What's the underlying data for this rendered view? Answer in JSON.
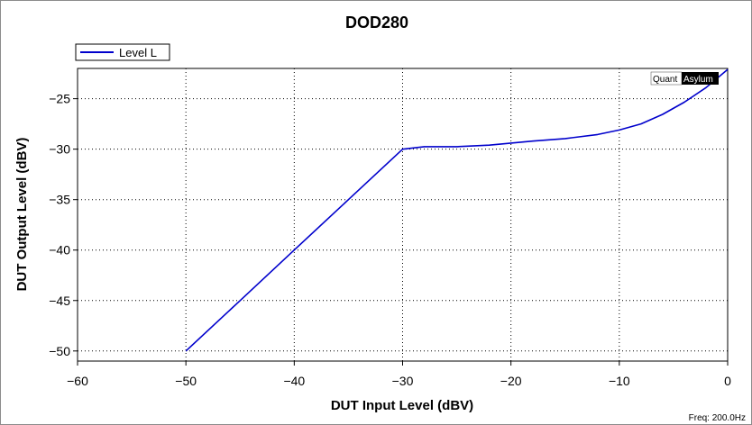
{
  "chart_data": {
    "type": "line",
    "title": "DOD280",
    "xlabel": "DUT Input Level (dBV)",
    "ylabel": "DUT Output Level (dBV)",
    "xlim": [
      -60,
      0
    ],
    "ylim": [
      -51,
      -22
    ],
    "xticks": [
      -60,
      -50,
      -40,
      -30,
      -20,
      -10,
      0
    ],
    "yticks": [
      -25,
      -30,
      -35,
      -40,
      -45,
      -50
    ],
    "grid": true,
    "legend_position": "top-left",
    "series": [
      {
        "name": "Level L",
        "color": "#0000cc",
        "x": [
          -50,
          -45,
          -40,
          -35,
          -30,
          -28,
          -25,
          -22,
          -20,
          -18,
          -15,
          -12,
          -10,
          -8,
          -6,
          -4,
          -2,
          0
        ],
        "y": [
          -50,
          -45,
          -40,
          -35,
          -30,
          -29.75,
          -29.75,
          -29.6,
          -29.4,
          -29.2,
          -28.95,
          -28.55,
          -28.1,
          -27.5,
          -26.55,
          -25.35,
          -23.9,
          -22.1
        ]
      }
    ]
  },
  "footer": {
    "freq": "Freq: 200.0Hz"
  },
  "brand": {
    "part1": "Quant",
    "part2": "Asylum"
  }
}
